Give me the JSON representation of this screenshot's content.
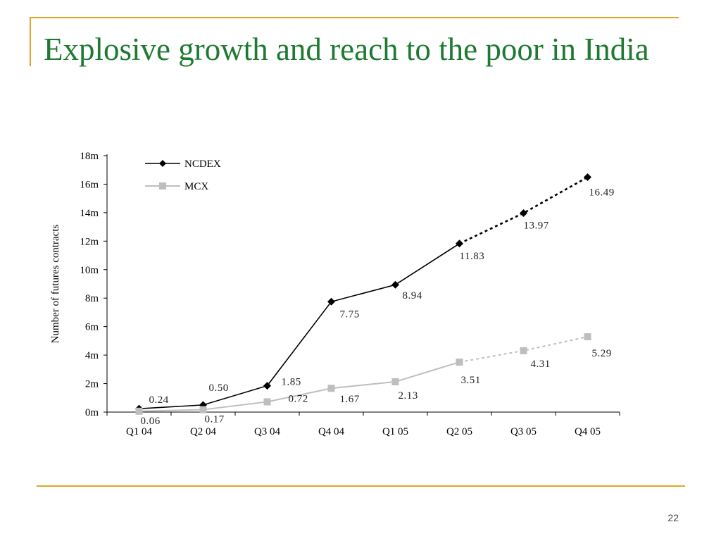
{
  "slide": {
    "title": "Explosive growth and reach to the poor in India",
    "page_number": "22"
  },
  "colors": {
    "title": "#1E7A32",
    "accent_rule": "#E0A526",
    "ncdex": "#000000",
    "mcx": "#BEBEBE"
  },
  "chart_data": {
    "type": "line",
    "title": "",
    "xlabel": "",
    "ylabel": "Number of futures contracts",
    "categories": [
      "Q1 04",
      "Q2 04",
      "Q3 04",
      "Q4 04",
      "Q1 05",
      "Q2 05",
      "Q3 05",
      "Q4 05"
    ],
    "ylim": [
      0,
      18
    ],
    "y_ticks": [
      "0m",
      "2m",
      "4m",
      "6m",
      "8m",
      "10m",
      "12m",
      "14m",
      "16m",
      "18m"
    ],
    "grid": false,
    "legend_position": "top-left",
    "series": [
      {
        "name": "NCDEX",
        "color": "#000000",
        "marker": "diamond",
        "values": [
          0.24,
          0.5,
          1.85,
          7.75,
          8.94,
          11.83,
          13.97,
          16.49
        ],
        "labels": [
          "0.24",
          "0.50",
          "1.85",
          "7.75",
          "8.94",
          "11.83",
          "13.97",
          "16.49"
        ],
        "dashed_from_index": 5
      },
      {
        "name": "MCX",
        "color": "#BEBEBE",
        "marker": "square",
        "values": [
          0.06,
          0.17,
          0.72,
          1.67,
          2.13,
          3.51,
          4.31,
          5.29
        ],
        "labels": [
          "0.06",
          "0.17",
          "0.72",
          "1.67",
          "2.13",
          "3.51",
          "4.31",
          "5.29"
        ],
        "dashed_from_index": 5
      }
    ]
  }
}
